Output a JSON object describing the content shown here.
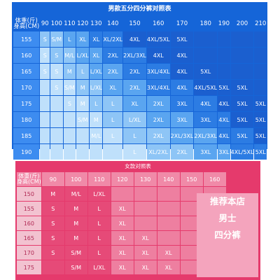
{
  "men": {
    "title": "男款五分四分裤对照表",
    "corner_weight": "体重(斤)",
    "corner_height": "身高(CM)",
    "weights": [
      "90",
      "100",
      "110",
      "120",
      "130",
      "140",
      "150",
      "160",
      "170",
      "180",
      "190",
      "200",
      "210"
    ],
    "rows": [
      {
        "height": "155",
        "cells": [
          "S",
          "S/M",
          "L",
          "XL",
          "XL",
          "XL/2XL",
          "4XL",
          "4XL/5XL",
          "5XL",
          "",
          "",
          "",
          ""
        ]
      },
      {
        "height": "160",
        "cells": [
          "S",
          "S",
          "M/L",
          "L/XL",
          "XL",
          "2XL",
          "2XL/3XL",
          "4XL",
          "4XL",
          "",
          "",
          "",
          ""
        ]
      },
      {
        "height": "165",
        "cells": [
          "S",
          "S",
          "M",
          "L",
          "L/XL",
          "2XL",
          "2XL",
          "3XL/4XL",
          "4XL",
          "5XL",
          "",
          "",
          ""
        ]
      },
      {
        "height": "170",
        "cells": [
          "",
          "S",
          "S/M",
          "M",
          "L/XL",
          "XL",
          "2XL",
          "3XL/4XL",
          "4XL",
          "4XL/5XL",
          "5XL",
          "5XL",
          ""
        ]
      },
      {
        "height": "175",
        "cells": [
          "",
          "",
          "S",
          "M",
          "L",
          "L",
          "XL",
          "2XL",
          "3XL",
          "4XL",
          "4XL",
          "5XL",
          "5XL"
        ]
      },
      {
        "height": "180",
        "cells": [
          "",
          "",
          "",
          "S/M",
          "M",
          "L",
          "L/XL",
          "2XL",
          "3XL",
          "3XL",
          "4XL",
          "5XL",
          "5XL"
        ]
      },
      {
        "height": "185",
        "cells": [
          "",
          "",
          "",
          "",
          "M/L",
          "L",
          "L",
          "2XL",
          "2XL/3XL",
          "2XL/3XL",
          "4XL",
          "5XL",
          "5XL"
        ]
      },
      {
        "height": "190",
        "cells": [
          "",
          "",
          "",
          "",
          "",
          "",
          "L",
          "XL/2XL",
          "2XL",
          "3XL",
          "3XL",
          "4XL/5XL",
          "5XL"
        ]
      }
    ]
  },
  "women": {
    "title": "女款对照表",
    "corner_weight": "体重(斤)",
    "corner_height": "身高(CM)",
    "weights": [
      "90",
      "100",
      "110",
      "120",
      "130",
      "140",
      "150",
      "160"
    ],
    "rows": [
      {
        "height": "150",
        "cells": [
          "M",
          "M/L",
          "L/XL",
          "",
          "",
          "",
          "",
          ""
        ]
      },
      {
        "height": "155",
        "cells": [
          "S",
          "M",
          "L",
          "XL",
          "",
          "",
          "",
          ""
        ]
      },
      {
        "height": "160",
        "cells": [
          "S",
          "M",
          "L",
          "XL",
          "",
          "",
          "",
          ""
        ]
      },
      {
        "height": "165",
        "cells": [
          "S",
          "M",
          "L",
          "XL",
          "XL",
          "",
          "",
          ""
        ]
      },
      {
        "height": "170",
        "cells": [
          "S",
          "S/M",
          "L",
          "XL",
          "XL",
          "XL",
          "",
          ""
        ]
      },
      {
        "height": "175",
        "cells": [
          "",
          "S/M",
          "L/XL",
          "XL",
          "XL",
          "XL",
          "",
          ""
        ]
      }
    ],
    "promo": {
      "line1": "推荐本店",
      "line2": "男士",
      "line3": "四分裤"
    }
  },
  "colors": {
    "men_bg": "#1565d8",
    "men_levels": [
      "#bfe0fb",
      "#8ec5f6",
      "#5aa5f0",
      "#2c7ce3",
      "#1b5fcf"
    ],
    "women_bg": "#e53a6c",
    "women_levels": [
      "#f8d3de",
      "#ee7fa0",
      "#e64a78"
    ],
    "promo_bg": "#f4a4bd"
  }
}
